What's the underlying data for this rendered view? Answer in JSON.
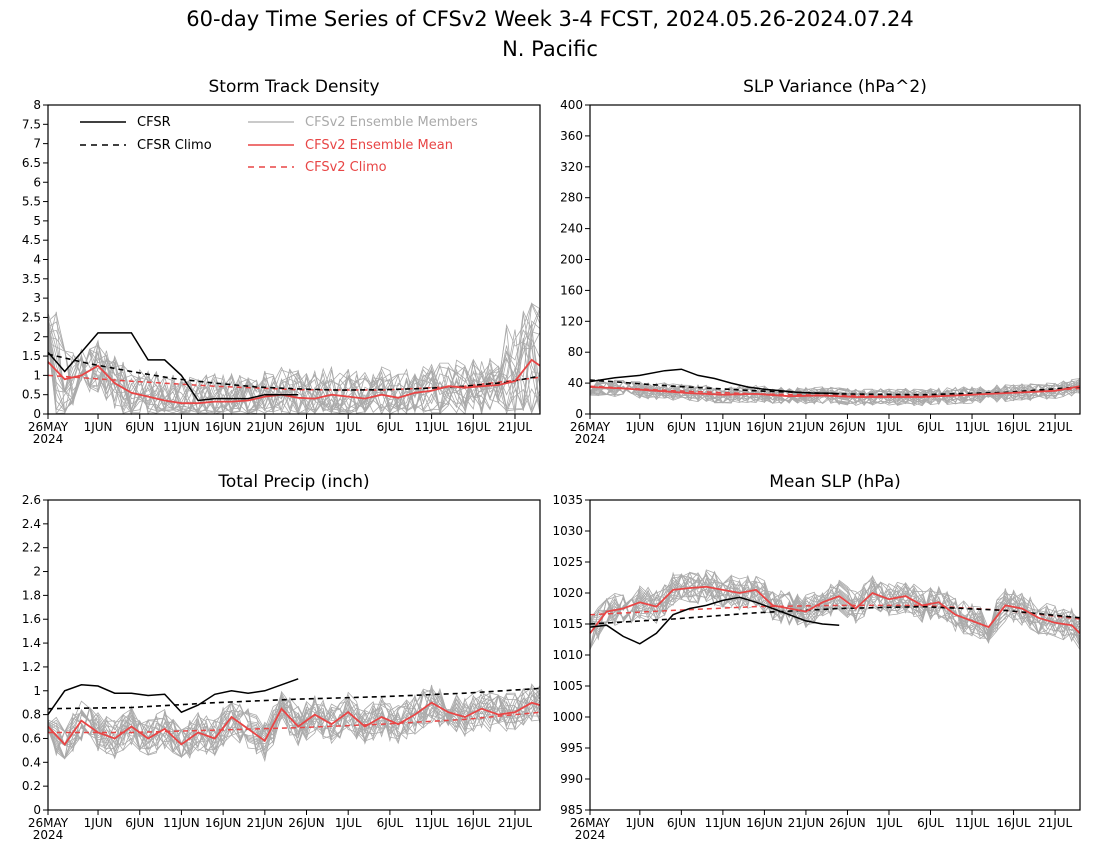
{
  "figure": {
    "title_line1": "60-day Time Series of CFSv2 Week 3-4 FCST, 2024.05.26-2024.07.24",
    "title_line2": "N. Pacific"
  },
  "colors": {
    "cfsr": "#000000",
    "members": "#aaaaaa",
    "ensemble_mean": "#e84545",
    "cfsv2_climo": "#e84545"
  },
  "legend": {
    "cfsr": "CFSR",
    "cfsr_climo": "CFSR Climo",
    "members": "CFSv2 Ensemble Members",
    "ensemble_mean": "CFSv2 Ensemble Mean",
    "cfsv2_climo": "CFSv2 Climo"
  },
  "x_ticks": [
    "26MAY",
    "1JUN",
    "6JUN",
    "11JUN",
    "16JUN",
    "21JUN",
    "26JUN",
    "1JUL",
    "6JUL",
    "11JUL",
    "16JUL",
    "21JUL"
  ],
  "x_year": "2024",
  "chart_data": [
    {
      "type": "line",
      "title": "Storm Track Density",
      "x_start": "2024-05-26",
      "x_end": "2024-07-24",
      "x_unit": "days",
      "ylim": [
        0,
        8
      ],
      "yticks": [
        "0",
        "0.5",
        "1",
        "1.5",
        "2",
        "2.5",
        "3",
        "3.5",
        "4",
        "4.5",
        "5",
        "5.5",
        "6",
        "6.5",
        "7",
        "7.5",
        "8"
      ],
      "series": [
        {
          "name": "CFSR",
          "style": "solid-black",
          "x": [
            0,
            2,
            4,
            6,
            8,
            10,
            12,
            14,
            16,
            18,
            20,
            22,
            24,
            26,
            28,
            30
          ],
          "y": [
            1.6,
            1.1,
            1.6,
            2.1,
            2.1,
            2.1,
            1.4,
            1.4,
            1.0,
            0.35,
            0.4,
            0.4,
            0.4,
            0.5,
            0.5,
            0.5
          ]
        },
        {
          "name": "CFSR Climo",
          "style": "dashed-black",
          "x": [
            0,
            5,
            10,
            15,
            20,
            25,
            30,
            35,
            40,
            45,
            50,
            55,
            59
          ],
          "y": [
            1.55,
            1.3,
            1.1,
            0.92,
            0.8,
            0.7,
            0.65,
            0.62,
            0.63,
            0.66,
            0.72,
            0.82,
            0.98
          ]
        },
        {
          "name": "CFSv2 Climo",
          "style": "dashed-red",
          "x": [
            0,
            10,
            20,
            30,
            40,
            50,
            59
          ],
          "y": [
            1.0,
            0.85,
            0.72,
            0.63,
            0.62,
            0.72,
            0.95
          ]
        },
        {
          "name": "CFSv2 Ensemble Mean",
          "style": "solid-red",
          "x": [
            0,
            2,
            4,
            6,
            8,
            10,
            12,
            14,
            16,
            18,
            20,
            22,
            24,
            26,
            28,
            30,
            32,
            34,
            36,
            38,
            40,
            42,
            44,
            46,
            48,
            50,
            52,
            54,
            56,
            58,
            59
          ],
          "y": [
            1.35,
            0.9,
            1.0,
            1.25,
            0.8,
            0.55,
            0.45,
            0.35,
            0.28,
            0.28,
            0.32,
            0.32,
            0.35,
            0.45,
            0.5,
            0.42,
            0.4,
            0.5,
            0.45,
            0.4,
            0.5,
            0.42,
            0.55,
            0.6,
            0.72,
            0.68,
            0.72,
            0.75,
            0.85,
            1.4,
            1.25
          ]
        }
      ]
    },
    {
      "type": "line",
      "title": "SLP Variance (hPa^2)",
      "x_start": "2024-05-26",
      "x_end": "2024-07-24",
      "x_unit": "days",
      "ylim": [
        0,
        400
      ],
      "yticks": [
        "0",
        "40",
        "80",
        "120",
        "160",
        "200",
        "240",
        "280",
        "320",
        "360",
        "400"
      ],
      "series": [
        {
          "name": "CFSR",
          "style": "solid-black",
          "x": [
            0,
            3,
            6,
            9,
            11,
            13,
            15,
            17,
            19,
            21,
            23,
            25,
            27,
            29,
            30
          ],
          "y": [
            42,
            47,
            50,
            56,
            58,
            50,
            46,
            40,
            35,
            32,
            30,
            28,
            27,
            27,
            26
          ]
        },
        {
          "name": "CFSR Climo",
          "style": "dashed-black",
          "x": [
            0,
            10,
            20,
            30,
            40,
            50,
            59
          ],
          "y": [
            44,
            36,
            30,
            26,
            25,
            28,
            35
          ]
        },
        {
          "name": "CFSv2 Climo",
          "style": "dashed-red",
          "x": [
            0,
            10,
            20,
            30,
            40,
            50,
            59
          ],
          "y": [
            36,
            30,
            26,
            24,
            24,
            27,
            33
          ]
        },
        {
          "name": "CFSv2 Ensemble Mean",
          "style": "solid-red",
          "x": [
            0,
            4,
            8,
            12,
            16,
            20,
            24,
            28,
            32,
            36,
            40,
            44,
            48,
            52,
            56,
            59
          ],
          "y": [
            35,
            33,
            30,
            27,
            25,
            26,
            23,
            24,
            22,
            22,
            22,
            24,
            26,
            28,
            30,
            36
          ]
        }
      ]
    },
    {
      "type": "line",
      "title": "Total Precip (inch)",
      "x_start": "2024-05-26",
      "x_end": "2024-07-24",
      "x_unit": "days",
      "ylim": [
        0,
        2.6
      ],
      "yticks": [
        "0",
        "0.2",
        "0.4",
        "0.6",
        "0.8",
        "1",
        "1.2",
        "1.4",
        "1.6",
        "1.8",
        "2",
        "2.2",
        "2.4",
        "2.6"
      ],
      "series": [
        {
          "name": "CFSR",
          "style": "solid-black",
          "x": [
            0,
            2,
            4,
            6,
            8,
            10,
            12,
            14,
            16,
            18,
            20,
            22,
            24,
            26,
            28,
            30
          ],
          "y": [
            0.8,
            1.0,
            1.05,
            1.04,
            0.98,
            0.98,
            0.96,
            0.97,
            0.82,
            0.88,
            0.97,
            1.0,
            0.98,
            1.0,
            1.05,
            1.1
          ]
        },
        {
          "name": "CFSR Climo",
          "style": "dashed-black",
          "x": [
            0,
            10,
            20,
            30,
            40,
            50,
            59
          ],
          "y": [
            0.85,
            0.86,
            0.9,
            0.93,
            0.95,
            0.98,
            1.02
          ]
        },
        {
          "name": "CFSv2 Climo",
          "style": "dashed-red",
          "x": [
            0,
            10,
            20,
            30,
            40,
            50,
            59
          ],
          "y": [
            0.65,
            0.65,
            0.67,
            0.69,
            0.72,
            0.76,
            0.82
          ]
        },
        {
          "name": "CFSv2 Ensemble Mean",
          "style": "solid-red",
          "x": [
            0,
            2,
            4,
            6,
            8,
            10,
            12,
            14,
            16,
            18,
            20,
            22,
            24,
            26,
            28,
            30,
            32,
            34,
            36,
            38,
            40,
            42,
            44,
            46,
            48,
            50,
            52,
            54,
            56,
            58,
            59
          ],
          "y": [
            0.7,
            0.55,
            0.75,
            0.65,
            0.6,
            0.7,
            0.6,
            0.68,
            0.55,
            0.65,
            0.6,
            0.78,
            0.68,
            0.58,
            0.85,
            0.7,
            0.8,
            0.72,
            0.82,
            0.7,
            0.78,
            0.72,
            0.8,
            0.9,
            0.82,
            0.78,
            0.85,
            0.8,
            0.82,
            0.9,
            0.88
          ]
        }
      ]
    },
    {
      "type": "line",
      "title": "Mean SLP (hPa)",
      "x_start": "2024-05-26",
      "x_end": "2024-07-24",
      "x_unit": "days",
      "ylim": [
        985,
        1035
      ],
      "yticks": [
        "985",
        "990",
        "995",
        "1000",
        "1005",
        "1010",
        "1015",
        "1020",
        "1025",
        "1030",
        "1035"
      ],
      "series": [
        {
          "name": "CFSR",
          "style": "solid-black",
          "x": [
            0,
            2,
            4,
            6,
            8,
            10,
            12,
            14,
            16,
            18,
            20,
            22,
            24,
            26,
            28,
            30
          ],
          "y": [
            1014.5,
            1014.8,
            1013.0,
            1011.8,
            1013.5,
            1016.5,
            1017.5,
            1018.0,
            1018.8,
            1019.3,
            1018.5,
            1017.5,
            1016.5,
            1015.5,
            1015.0,
            1014.8
          ]
        },
        {
          "name": "CFSR Climo",
          "style": "dashed-black",
          "x": [
            0,
            10,
            20,
            30,
            40,
            50,
            59
          ],
          "y": [
            1015.0,
            1015.8,
            1016.8,
            1017.5,
            1017.8,
            1017.2,
            1016.0
          ]
        },
        {
          "name": "CFSv2 Climo",
          "style": "dashed-red",
          "x": [
            0,
            10,
            20,
            30,
            40,
            50,
            59
          ],
          "y": [
            1016.5,
            1017.2,
            1017.8,
            1018.0,
            1018.0,
            1017.2,
            1015.8
          ]
        },
        {
          "name": "CFSv2 Ensemble Mean",
          "style": "solid-red",
          "x": [
            0,
            2,
            4,
            6,
            8,
            10,
            12,
            14,
            16,
            18,
            20,
            22,
            24,
            26,
            28,
            30,
            32,
            34,
            36,
            38,
            40,
            42,
            44,
            46,
            48,
            50,
            52,
            54,
            56,
            58,
            59
          ],
          "y": [
            1013.5,
            1017.0,
            1017.5,
            1018.5,
            1017.8,
            1020.5,
            1020.8,
            1021.0,
            1020.5,
            1020.0,
            1020.5,
            1018.0,
            1017.5,
            1017.0,
            1018.5,
            1019.5,
            1017.5,
            1020.0,
            1019.0,
            1019.5,
            1018.0,
            1018.5,
            1016.5,
            1015.5,
            1014.5,
            1018.0,
            1017.5,
            1016.0,
            1015.2,
            1014.8,
            1013.5
          ]
        }
      ]
    }
  ]
}
